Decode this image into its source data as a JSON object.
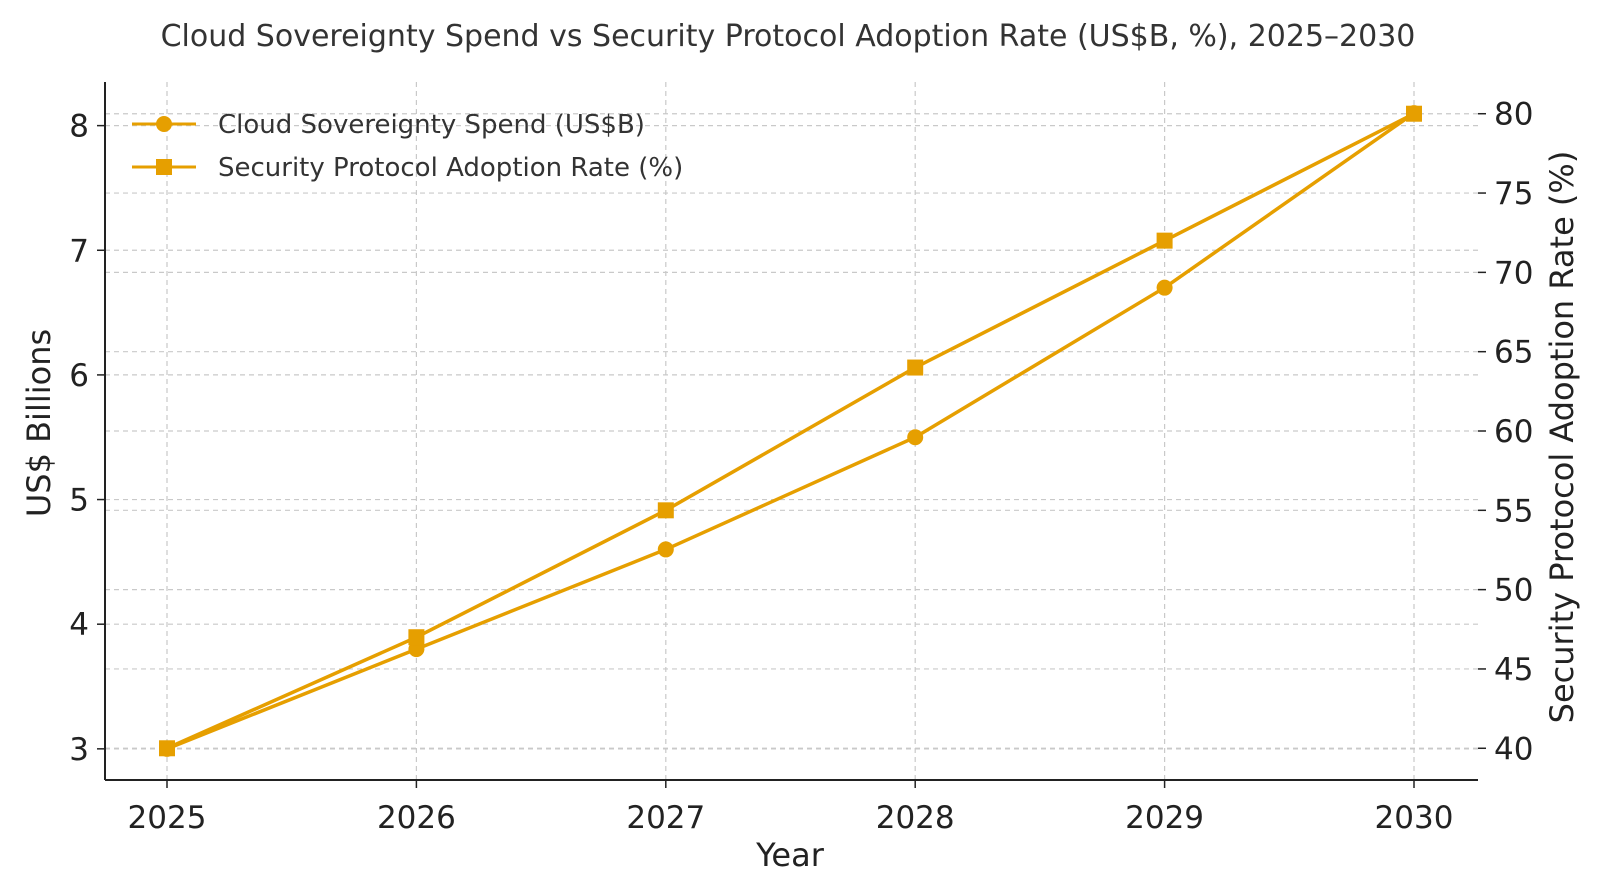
{
  "chart_data": {
    "type": "line",
    "title": "Cloud Sovereignty Spend vs Security Protocol Adoption Rate (US$B, %), 2025–2030",
    "xlabel": "Year",
    "ylabel_left": "US$ Billions",
    "ylabel_right": "Security Protocol Adoption Rate (%)",
    "categories": [
      "2025",
      "2026",
      "2027",
      "2028",
      "2029",
      "2030"
    ],
    "ylim_left": [
      2.75,
      8.35
    ],
    "ylim_right": [
      38,
      82
    ],
    "yticks_left": [
      "3",
      "4",
      "5",
      "6",
      "7",
      "8"
    ],
    "yticks_right": [
      "40",
      "45",
      "50",
      "55",
      "60",
      "65",
      "70",
      "75",
      "80"
    ],
    "grid": true,
    "legend_position": "top-left",
    "series": [
      {
        "name": "Cloud Sovereignty Spend (US$B)",
        "axis": "left",
        "marker": "circle",
        "color": "#E69F00",
        "values": [
          3.0,
          3.8,
          4.6,
          5.5,
          6.7,
          8.1
        ]
      },
      {
        "name": "Security Protocol Adoption Rate (%)",
        "axis": "right",
        "marker": "square",
        "color": "#E69F00",
        "values": [
          40,
          47,
          55,
          64,
          72,
          80
        ]
      }
    ]
  }
}
